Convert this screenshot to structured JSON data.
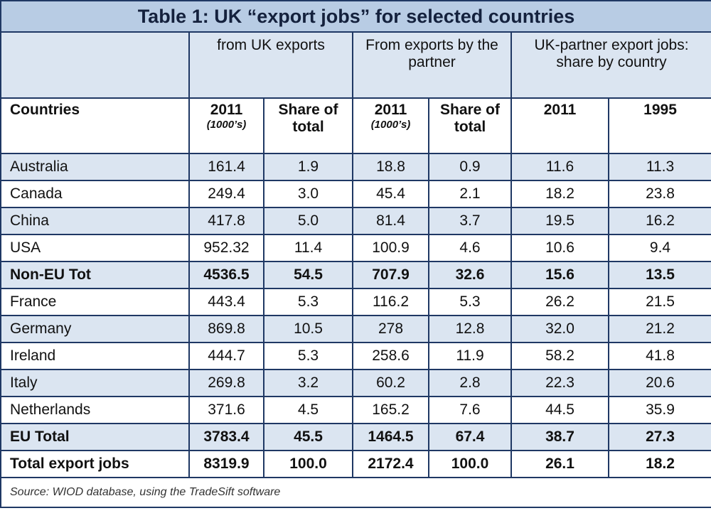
{
  "title": "Table 1: UK “export jobs” for selected countries",
  "header": {
    "groups": [
      "from UK exports",
      "From exports by the partner",
      "UK-partner export jobs: share by country"
    ],
    "columns": [
      {
        "label": "Countries"
      },
      {
        "label": "2011",
        "sub": "(1000’s)"
      },
      {
        "label": "Share of total"
      },
      {
        "label": "2011",
        "sub": "(1000’s)"
      },
      {
        "label": "Share of total"
      },
      {
        "label": "2011"
      },
      {
        "label": "1995"
      }
    ]
  },
  "table": {
    "rows": [
      [
        "Australia",
        "161.4",
        "1.9",
        "18.8",
        "0.9",
        "11.6",
        "11.3"
      ],
      [
        "Canada",
        "249.4",
        "3.0",
        "45.4",
        "2.1",
        "18.2",
        "23.8"
      ],
      [
        "China",
        "417.8",
        "5.0",
        "81.4",
        "3.7",
        "19.5",
        "16.2"
      ],
      [
        "USA",
        "952.32",
        "11.4",
        "100.9",
        "4.6",
        "10.6",
        "9.4"
      ],
      [
        "Non-EU Tot",
        "4536.5",
        "54.5",
        "707.9",
        "32.6",
        "15.6",
        "13.5"
      ],
      [
        "France",
        "443.4",
        "5.3",
        "116.2",
        "5.3",
        "26.2",
        "21.5"
      ],
      [
        "Germany",
        "869.8",
        "10.5",
        "278",
        "12.8",
        "32.0",
        "21.2"
      ],
      [
        "Ireland",
        "444.7",
        "5.3",
        "258.6",
        "11.9",
        "58.2",
        "41.8"
      ],
      [
        "Italy",
        "269.8",
        "3.2",
        "60.2",
        "2.8",
        "22.3",
        "20.6"
      ],
      [
        "Netherlands",
        "371.6",
        "4.5",
        "165.2",
        "7.6",
        "44.5",
        "35.9"
      ],
      [
        "EU Total",
        "3783.4",
        "45.5",
        "1464.5",
        "67.4",
        "38.7",
        "27.3"
      ],
      [
        "Total export jobs",
        "8319.9",
        "100.0",
        "2172.4",
        "100.0",
        "26.1",
        "18.2"
      ]
    ]
  },
  "source": "Source: WIOD database, using the TradeSift software"
}
